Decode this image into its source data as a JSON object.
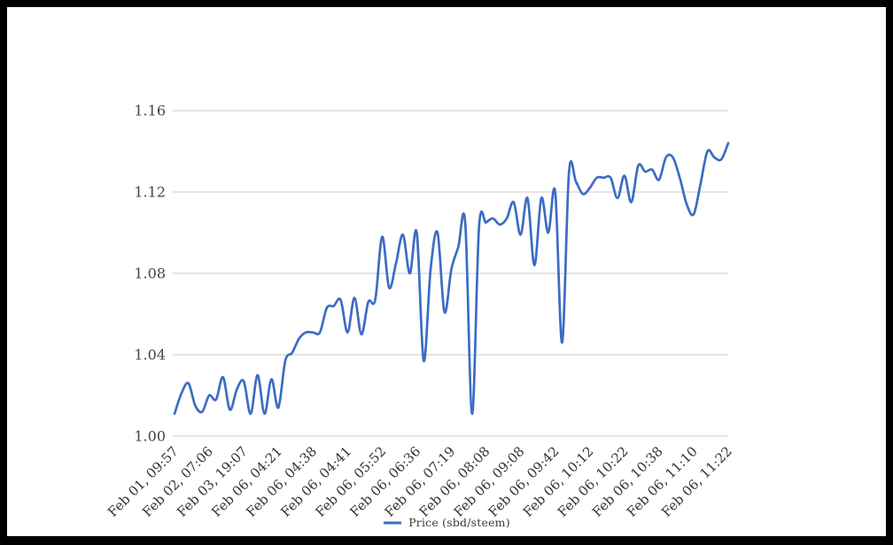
{
  "frame": {
    "background": "#ffffff",
    "border_color": "#000000"
  },
  "chart_data": {
    "type": "line",
    "title": "",
    "xlabel": "",
    "ylabel": "",
    "grid": true,
    "legend_position": "bottom",
    "y_ticks": [
      1.0,
      1.04,
      1.08,
      1.12,
      1.16
    ],
    "y_tick_labels": [
      "1.00",
      "1.04",
      "1.08",
      "1.12",
      "1.16"
    ],
    "ylim": [
      1.0,
      1.165
    ],
    "x_label_every_nth_point": 5,
    "x_labels": [
      "Feb 01, 09:57",
      "Feb 02, 07:06",
      "Feb 03, 19:07",
      "Feb 06, 04:21",
      "Feb 06, 04:38",
      "Feb 06, 04:41",
      "Feb 06, 05:52",
      "Feb 06, 06:36",
      "Feb 06, 07:19",
      "Feb 06, 08:08",
      "Feb 06, 09:08",
      "Feb 06, 09:42",
      "Feb 06, 10:12",
      "Feb 06, 10:22",
      "Feb 06, 10:38",
      "Feb 06, 11:10",
      "Feb 06, 11:22"
    ],
    "series": [
      {
        "name": "Price (sbd/steem)",
        "color": "#3c6cc4",
        "values": [
          1.011,
          1.021,
          1.026,
          1.015,
          1.012,
          1.02,
          1.018,
          1.029,
          1.013,
          1.023,
          1.027,
          1.011,
          1.03,
          1.011,
          1.028,
          1.014,
          1.037,
          1.041,
          1.048,
          1.051,
          1.051,
          1.051,
          1.063,
          1.064,
          1.067,
          1.051,
          1.068,
          1.05,
          1.066,
          1.067,
          1.098,
          1.073,
          1.085,
          1.099,
          1.08,
          1.1,
          1.037,
          1.082,
          1.1,
          1.061,
          1.082,
          1.093,
          1.105,
          1.011,
          1.103,
          1.105,
          1.107,
          1.104,
          1.107,
          1.115,
          1.099,
          1.117,
          1.084,
          1.117,
          1.1,
          1.12,
          1.046,
          1.13,
          1.125,
          1.119,
          1.122,
          1.127,
          1.127,
          1.127,
          1.117,
          1.128,
          1.115,
          1.133,
          1.13,
          1.131,
          1.126,
          1.137,
          1.137,
          1.127,
          1.114,
          1.109,
          1.124,
          1.14,
          1.137,
          1.136,
          1.144
        ]
      }
    ],
    "gridline_color": "#cbcbcb"
  }
}
